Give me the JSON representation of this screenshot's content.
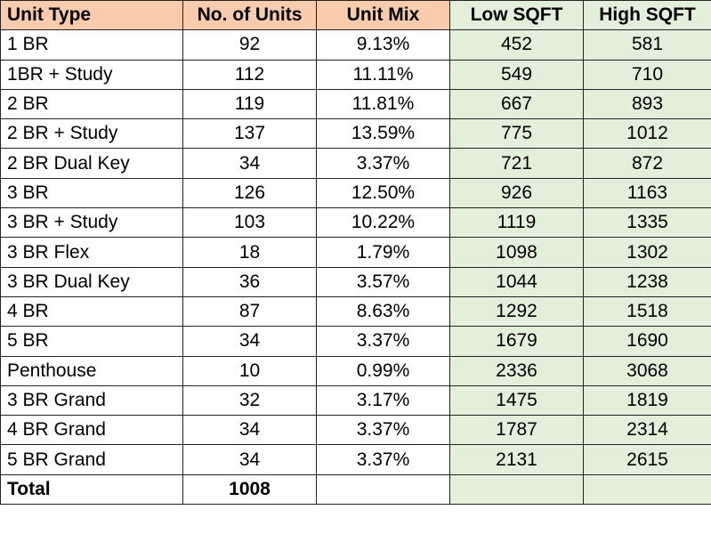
{
  "table": {
    "header": [
      "Unit Type",
      "No. of Units",
      "Unit Mix",
      "Low SQFT",
      "High SQFT"
    ],
    "rows": [
      [
        "1 BR",
        "92",
        "9.13%",
        "452",
        "581"
      ],
      [
        "1BR + Study",
        "112",
        "11.11%",
        "549",
        "710"
      ],
      [
        "2 BR",
        "119",
        "11.81%",
        "667",
        "893"
      ],
      [
        "2 BR + Study",
        "137",
        "13.59%",
        "775",
        "1012"
      ],
      [
        "2 BR Dual Key",
        "34",
        "3.37%",
        "721",
        "872"
      ],
      [
        "3 BR",
        "126",
        "12.50%",
        "926",
        "1163"
      ],
      [
        "3 BR + Study",
        "103",
        "10.22%",
        "1119",
        "1335"
      ],
      [
        "3 BR Flex",
        "18",
        "1.79%",
        "1098",
        "1302"
      ],
      [
        "3 BR Dual Key",
        "36",
        "3.57%",
        "1044",
        "1238"
      ],
      [
        "4 BR",
        "87",
        "8.63%",
        "1292",
        "1518"
      ],
      [
        "5 BR",
        "34",
        "3.37%",
        "1679",
        "1690"
      ],
      [
        "Penthouse",
        "10",
        "0.99%",
        "2336",
        "3068"
      ],
      [
        "3 BR Grand",
        "32",
        "3.17%",
        "1475",
        "1819"
      ],
      [
        "4 BR Grand",
        "34",
        "3.37%",
        "1787",
        "2314"
      ],
      [
        "5 BR Grand",
        "34",
        "3.37%",
        "2131",
        "2615"
      ]
    ],
    "total": [
      "Total",
      "1008"
    ]
  }
}
